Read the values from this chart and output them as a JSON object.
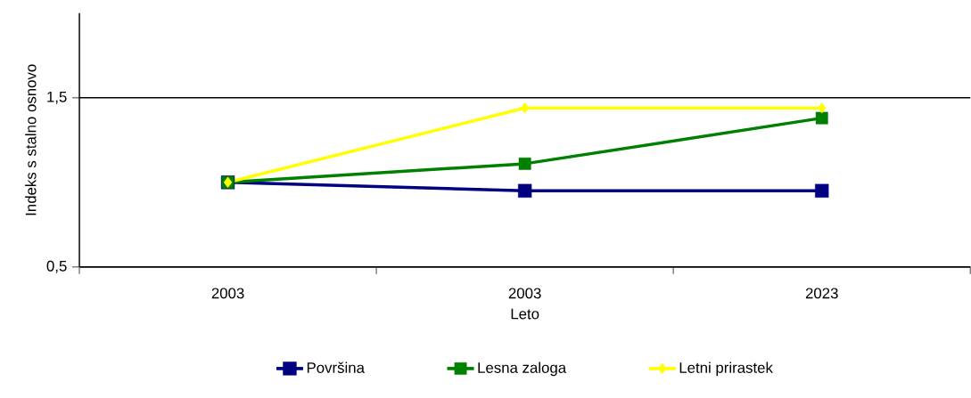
{
  "chart_data": {
    "type": "line",
    "xlabel": "Leto",
    "ylabel": "Indeks s stalno osnovo",
    "categories": [
      "2003",
      "2003",
      "2023"
    ],
    "series": [
      {
        "name": "Površina",
        "color": "#000080",
        "marker": "square",
        "values": [
          1.0,
          0.95,
          0.95
        ]
      },
      {
        "name": "Lesna zaloga",
        "color": "#008000",
        "marker": "square",
        "values": [
          1.0,
          1.11,
          1.38
        ]
      },
      {
        "name": "Letni prirastek",
        "color": "#ffff00",
        "marker": "diamond",
        "values": [
          1.0,
          1.44,
          1.44
        ]
      }
    ],
    "ylim": [
      0.5,
      2.0
    ],
    "yticks": [
      {
        "value": 0.5,
        "label": "0,5"
      },
      {
        "value": 1.5,
        "label": "1,5"
      }
    ],
    "grid": "y",
    "legend": "bottom"
  }
}
